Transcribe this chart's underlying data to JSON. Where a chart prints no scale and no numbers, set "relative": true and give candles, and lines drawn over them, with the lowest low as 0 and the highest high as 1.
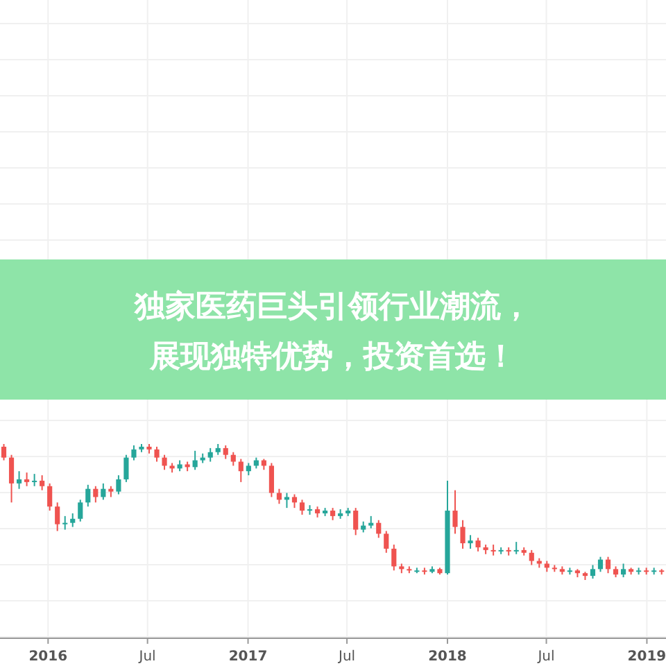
{
  "chart_data": {
    "type": "candlestick",
    "title": "独家医药巨头引领行业潮流，展现独特优势，投资首选！",
    "relative": true,
    "grid": true,
    "xlim": [
      "2015-10-05",
      "2019-02-05"
    ],
    "xticks": [
      {
        "value": "2016-01-01",
        "label": "2016"
      },
      {
        "value": "2016-07-01",
        "label": "Jul"
      },
      {
        "value": "2017-01-01",
        "label": "2017"
      },
      {
        "value": "2017-07-01",
        "label": "Jul"
      },
      {
        "value": "2018-01-01",
        "label": "2018"
      },
      {
        "value": "2018-07-01",
        "label": "Jul"
      },
      {
        "value": "2019-01-01",
        "label": "2019"
      }
    ],
    "x": [
      "2015-10-12",
      "2015-10-26",
      "2015-11-09",
      "2015-11-23",
      "2015-12-07",
      "2015-12-21",
      "2016-01-04",
      "2016-01-18",
      "2016-02-01",
      "2016-02-15",
      "2016-02-29",
      "2016-03-14",
      "2016-03-28",
      "2016-04-11",
      "2016-04-25",
      "2016-05-09",
      "2016-05-23",
      "2016-06-06",
      "2016-06-20",
      "2016-07-04",
      "2016-07-18",
      "2016-08-01",
      "2016-08-15",
      "2016-08-29",
      "2016-09-12",
      "2016-09-26",
      "2016-10-10",
      "2016-10-24",
      "2016-11-07",
      "2016-11-21",
      "2016-12-05",
      "2016-12-19",
      "2017-01-02",
      "2017-01-16",
      "2017-01-30",
      "2017-02-13",
      "2017-02-27",
      "2017-03-13",
      "2017-03-27",
      "2017-04-10",
      "2017-04-24",
      "2017-05-08",
      "2017-05-22",
      "2017-06-05",
      "2017-06-19",
      "2017-07-03",
      "2017-07-17",
      "2017-07-31",
      "2017-08-14",
      "2017-08-28",
      "2017-09-11",
      "2017-09-25",
      "2017-10-09",
      "2017-10-23",
      "2017-11-06",
      "2017-11-20",
      "2017-12-04",
      "2017-12-18",
      "2018-01-01",
      "2018-01-15",
      "2018-01-29",
      "2018-02-12",
      "2018-02-26",
      "2018-03-12",
      "2018-03-26",
      "2018-04-09",
      "2018-04-23",
      "2018-05-07",
      "2018-05-21",
      "2018-06-04",
      "2018-06-18",
      "2018-07-02",
      "2018-07-16",
      "2018-07-30",
      "2018-08-13",
      "2018-08-27",
      "2018-09-10",
      "2018-09-24",
      "2018-10-08",
      "2018-10-22",
      "2018-11-05",
      "2018-11-19",
      "2018-12-03",
      "2018-12-17",
      "2018-12-31",
      "2019-01-14",
      "2019-01-28"
    ],
    "ohlc": [
      [
        0.98,
        1.0,
        0.88,
        0.9
      ],
      [
        0.9,
        0.92,
        0.57,
        0.71
      ],
      [
        0.71,
        0.8,
        0.67,
        0.74
      ],
      [
        0.74,
        0.79,
        0.69,
        0.72
      ],
      [
        0.72,
        0.78,
        0.69,
        0.73
      ],
      [
        0.73,
        0.77,
        0.66,
        0.69
      ],
      [
        0.69,
        0.71,
        0.51,
        0.54
      ],
      [
        0.54,
        0.57,
        0.36,
        0.41
      ],
      [
        0.41,
        0.47,
        0.37,
        0.42
      ],
      [
        0.42,
        0.49,
        0.39,
        0.45
      ],
      [
        0.45,
        0.59,
        0.43,
        0.57
      ],
      [
        0.57,
        0.7,
        0.54,
        0.67
      ],
      [
        0.67,
        0.69,
        0.57,
        0.61
      ],
      [
        0.61,
        0.71,
        0.59,
        0.67
      ],
      [
        0.67,
        0.69,
        0.61,
        0.65
      ],
      [
        0.65,
        0.77,
        0.63,
        0.74
      ],
      [
        0.74,
        0.92,
        0.72,
        0.9
      ],
      [
        0.9,
        0.99,
        0.88,
        0.96
      ],
      [
        0.96,
        1.0,
        0.94,
        0.98
      ],
      [
        0.98,
        1.0,
        0.93,
        0.96
      ],
      [
        0.96,
        0.98,
        0.87,
        0.9
      ],
      [
        0.9,
        0.92,
        0.81,
        0.84
      ],
      [
        0.84,
        0.86,
        0.79,
        0.82
      ],
      [
        0.82,
        0.88,
        0.8,
        0.85
      ],
      [
        0.85,
        0.87,
        0.8,
        0.83
      ],
      [
        0.83,
        0.95,
        0.81,
        0.88
      ],
      [
        0.88,
        0.93,
        0.86,
        0.9
      ],
      [
        0.9,
        0.97,
        0.87,
        0.94
      ],
      [
        0.94,
        1.0,
        0.92,
        0.97
      ],
      [
        0.97,
        0.99,
        0.89,
        0.92
      ],
      [
        0.92,
        0.94,
        0.84,
        0.87
      ],
      [
        0.87,
        0.89,
        0.72,
        0.8
      ],
      [
        0.8,
        0.86,
        0.77,
        0.84
      ],
      [
        0.84,
        0.9,
        0.82,
        0.88
      ],
      [
        0.88,
        0.89,
        0.81,
        0.84
      ],
      [
        0.84,
        0.86,
        0.61,
        0.64
      ],
      [
        0.64,
        0.67,
        0.56,
        0.59
      ],
      [
        0.59,
        0.64,
        0.53,
        0.61
      ],
      [
        0.61,
        0.63,
        0.53,
        0.57
      ],
      [
        0.57,
        0.59,
        0.48,
        0.51
      ],
      [
        0.51,
        0.55,
        0.48,
        0.52
      ],
      [
        0.52,
        0.54,
        0.46,
        0.49
      ],
      [
        0.49,
        0.53,
        0.47,
        0.51
      ],
      [
        0.51,
        0.53,
        0.44,
        0.47
      ],
      [
        0.47,
        0.52,
        0.45,
        0.49
      ],
      [
        0.49,
        0.53,
        0.47,
        0.51
      ],
      [
        0.51,
        0.53,
        0.33,
        0.37
      ],
      [
        0.37,
        0.43,
        0.35,
        0.4
      ],
      [
        0.4,
        0.47,
        0.38,
        0.42
      ],
      [
        0.42,
        0.44,
        0.31,
        0.34
      ],
      [
        0.34,
        0.36,
        0.2,
        0.23
      ],
      [
        0.23,
        0.26,
        0.07,
        0.1
      ],
      [
        0.1,
        0.12,
        0.05,
        0.08
      ],
      [
        0.08,
        0.1,
        0.05,
        0.07
      ],
      [
        0.07,
        0.09,
        0.05,
        0.07
      ],
      [
        0.07,
        0.09,
        0.04,
        0.06
      ],
      [
        0.06,
        0.1,
        0.05,
        0.08
      ],
      [
        0.08,
        0.09,
        0.04,
        0.05
      ],
      [
        0.05,
        0.73,
        0.04,
        0.51
      ],
      [
        0.51,
        0.66,
        0.34,
        0.39
      ],
      [
        0.39,
        0.44,
        0.23,
        0.27
      ],
      [
        0.27,
        0.33,
        0.23,
        0.29
      ],
      [
        0.29,
        0.31,
        0.21,
        0.24
      ],
      [
        0.24,
        0.26,
        0.19,
        0.22
      ],
      [
        0.22,
        0.26,
        0.18,
        0.21
      ],
      [
        0.21,
        0.24,
        0.19,
        0.22
      ],
      [
        0.22,
        0.24,
        0.18,
        0.21
      ],
      [
        0.21,
        0.28,
        0.19,
        0.22
      ],
      [
        0.22,
        0.24,
        0.18,
        0.2
      ],
      [
        0.2,
        0.22,
        0.11,
        0.14
      ],
      [
        0.14,
        0.16,
        0.09,
        0.12
      ],
      [
        0.12,
        0.14,
        0.06,
        0.09
      ],
      [
        0.09,
        0.11,
        0.06,
        0.08
      ],
      [
        0.08,
        0.1,
        0.04,
        0.06
      ],
      [
        0.06,
        0.09,
        0.04,
        0.07
      ],
      [
        0.07,
        0.08,
        0.02,
        0.05
      ],
      [
        0.05,
        0.06,
        0.0,
        0.03
      ],
      [
        0.03,
        0.11,
        0.01,
        0.08
      ],
      [
        0.08,
        0.17,
        0.06,
        0.15
      ],
      [
        0.15,
        0.17,
        0.05,
        0.08
      ],
      [
        0.08,
        0.1,
        0.02,
        0.04
      ],
      [
        0.04,
        0.12,
        0.02,
        0.08
      ],
      [
        0.08,
        0.09,
        0.04,
        0.06
      ],
      [
        0.06,
        0.09,
        0.04,
        0.07
      ],
      [
        0.07,
        0.09,
        0.04,
        0.06
      ],
      [
        0.06,
        0.09,
        0.04,
        0.07
      ],
      [
        0.07,
        0.08,
        0.04,
        0.06
      ]
    ]
  }
}
